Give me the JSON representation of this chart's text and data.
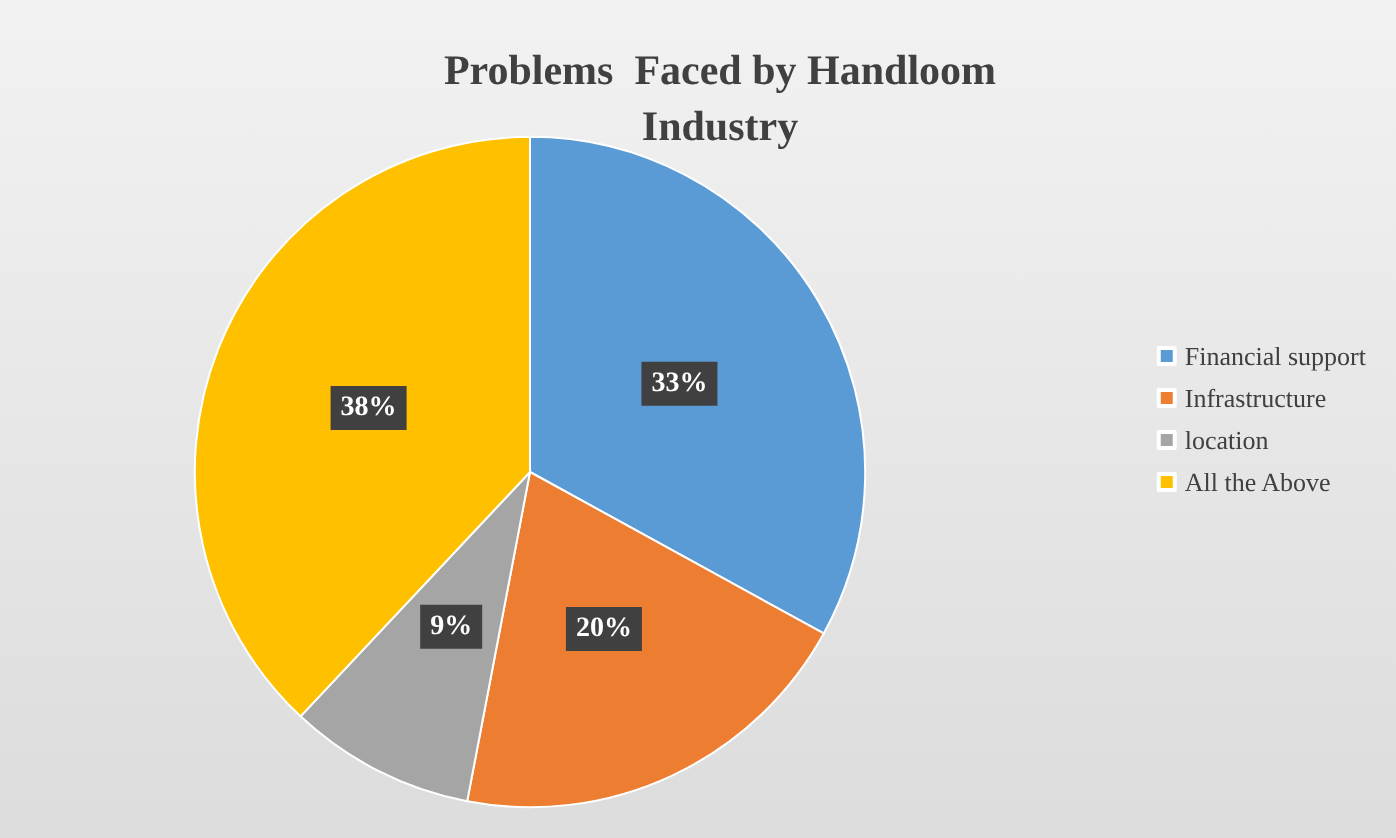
{
  "chart_data": {
    "type": "pie",
    "title": "Problems  Faced by Handloom\nIndustry",
    "categories": [
      "Financial support",
      "Infrastructure",
      "location",
      "All the Above"
    ],
    "values": [
      33,
      20,
      9,
      38
    ],
    "colors": [
      "#5b9bd5",
      "#ed7d31",
      "#a5a5a5",
      "#ffc000"
    ],
    "value_labels": [
      "33%",
      "20%",
      "9%",
      "38%"
    ],
    "legend": "right"
  }
}
